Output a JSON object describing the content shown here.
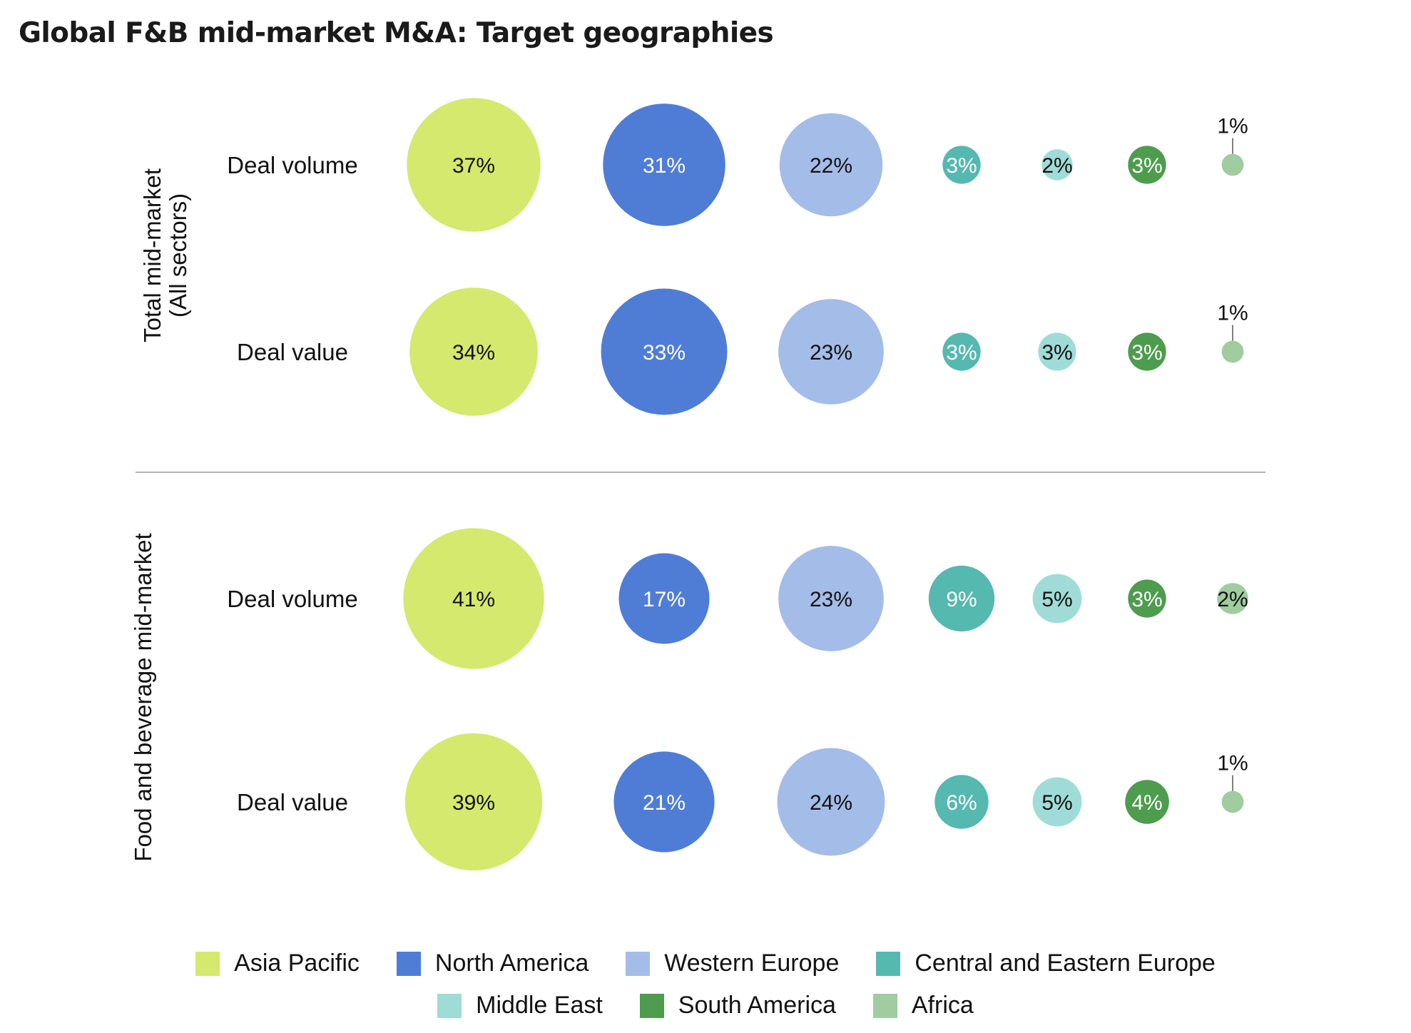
{
  "chart_data": {
    "type": "bubble",
    "title": "Global F&B mid-market M&A: Target geographies",
    "categories": [
      "Asia Pacific",
      "North America",
      "Western Europe",
      "Central and Eastern Europe",
      "Middle East",
      "South America",
      "Africa"
    ],
    "colors": [
      "#d4e96e",
      "#4f7dd6",
      "#a4bce8",
      "#55b9b0",
      "#9fdcd8",
      "#4e9c4e",
      "#a0cc9f"
    ],
    "label_colors": [
      "#111111",
      "#ffffff",
      "#111111",
      "#ffffff",
      "#111111",
      "#ffffff",
      "#111111"
    ],
    "unit": "%",
    "groups": [
      {
        "label": "Total mid-market\n(All sectors)",
        "rows": [
          {
            "label": "Deal volume",
            "values": [
              37,
              31,
              22,
              3,
              2,
              3,
              1
            ]
          },
          {
            "label": "Deal value",
            "values": [
              34,
              33,
              23,
              3,
              3,
              3,
              1
            ]
          }
        ]
      },
      {
        "label": "Food and beverage mid-market",
        "rows": [
          {
            "label": "Deal volume",
            "values": [
              41,
              17,
              23,
              9,
              5,
              3,
              2
            ]
          },
          {
            "label": "Deal value",
            "values": [
              39,
              21,
              24,
              6,
              5,
              4,
              1
            ]
          }
        ]
      }
    ]
  }
}
